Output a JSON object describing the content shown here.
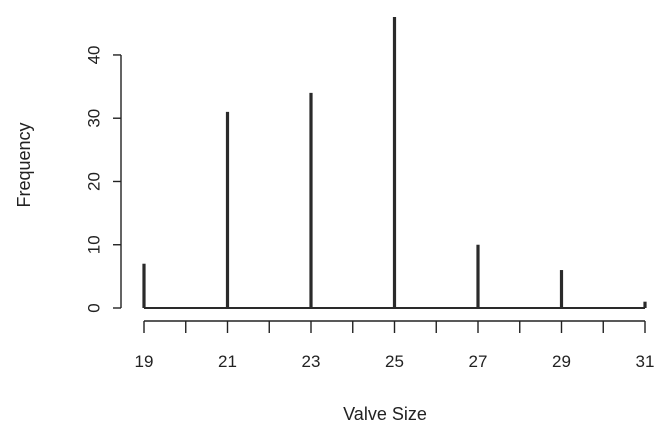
{
  "chart_data": {
    "type": "bar",
    "x": [
      19,
      21,
      23,
      25,
      27,
      29,
      31
    ],
    "values": [
      7,
      31,
      34,
      46,
      10,
      6,
      1
    ],
    "xlabel": "Valve Size",
    "ylabel": "Frequency",
    "xlim": [
      19,
      31
    ],
    "ylim": [
      0,
      46
    ],
    "x_ticks": [
      19,
      20,
      21,
      22,
      23,
      24,
      25,
      26,
      27,
      28,
      29,
      30,
      31
    ],
    "x_tick_labels": [
      "19",
      "21",
      "23",
      "25",
      "27",
      "29",
      "31"
    ],
    "y_ticks": [
      0,
      10,
      20,
      30,
      40
    ],
    "y_tick_labels": [
      "0",
      "10",
      "20",
      "30",
      "40"
    ],
    "grid": false,
    "legend": "none",
    "colors": {
      "bars": "#2a2a2a",
      "axis": "#222222",
      "text": "#222222"
    }
  }
}
